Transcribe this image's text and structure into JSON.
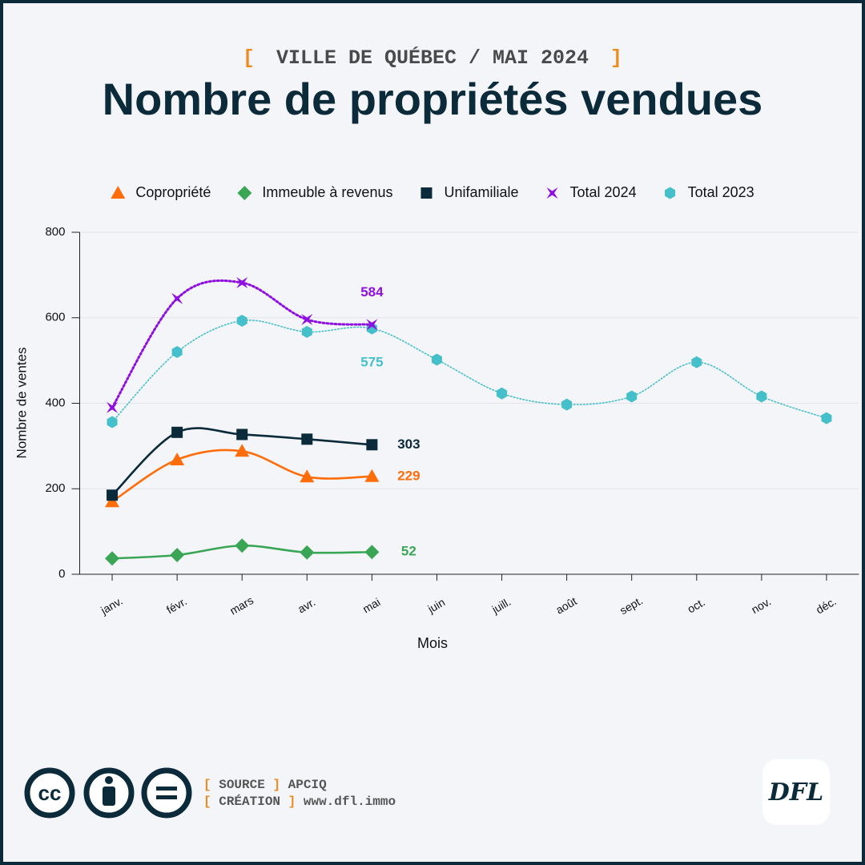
{
  "subtitle_brackets": [
    "[",
    "]"
  ],
  "footer": {
    "source_label": "SOURCE",
    "source": "APCIQ",
    "creation_label": "CRÉATION",
    "creation": "www.dfl.immo",
    "license": "cc",
    "logo": "DFL"
  },
  "chart_data": {
    "type": "line",
    "subtitle": "VILLE DE QUÉBEC / MAI 2024",
    "title": "Nombre de propriétés vendues",
    "x_label": "Mois",
    "y_label": "Nombre de ventes",
    "categories": [
      "janv.",
      "févr.",
      "mars",
      "avr.",
      "mai",
      "juin",
      "juill.",
      "août",
      "sept.",
      "oct.",
      "nov.",
      "déc."
    ],
    "ylim": [
      0,
      800
    ],
    "yticks": [
      0,
      200,
      400,
      600,
      800
    ],
    "grid": true,
    "legend": "top",
    "series": [
      {
        "name": "Copropriété",
        "color": "#ff6d0a",
        "marker": "triangle",
        "dash": "solid",
        "end_label": true,
        "values": [
          170,
          268,
          288,
          228,
          229,
          null,
          null,
          null,
          null,
          null,
          null,
          null
        ]
      },
      {
        "name": "Immeuble à revenus",
        "color": "#3aa655",
        "marker": "diamond",
        "dash": "solid",
        "end_label": true,
        "values": [
          37,
          45,
          67,
          51,
          52,
          null,
          null,
          null,
          null,
          null,
          null,
          null
        ]
      },
      {
        "name": "Unifamiliale",
        "color": "#0b2a3a",
        "marker": "square",
        "dash": "solid",
        "end_label": true,
        "values": [
          185,
          332,
          327,
          316,
          303,
          null,
          null,
          null,
          null,
          null,
          null,
          null
        ]
      },
      {
        "name": "Total 2024",
        "color": "#8e0fe0",
        "marker": "star",
        "dash": "dotted",
        "end_label": true,
        "values": [
          390,
          645,
          682,
          596,
          584,
          null,
          null,
          null,
          null,
          null,
          null,
          null
        ]
      },
      {
        "name": "Total 2023",
        "color": "#45bfc9",
        "marker": "hexagon",
        "dash": "dotted",
        "end_label": true,
        "values": [
          356,
          520,
          593,
          567,
          575,
          502,
          423,
          397,
          416,
          496,
          416,
          365
        ]
      }
    ]
  }
}
